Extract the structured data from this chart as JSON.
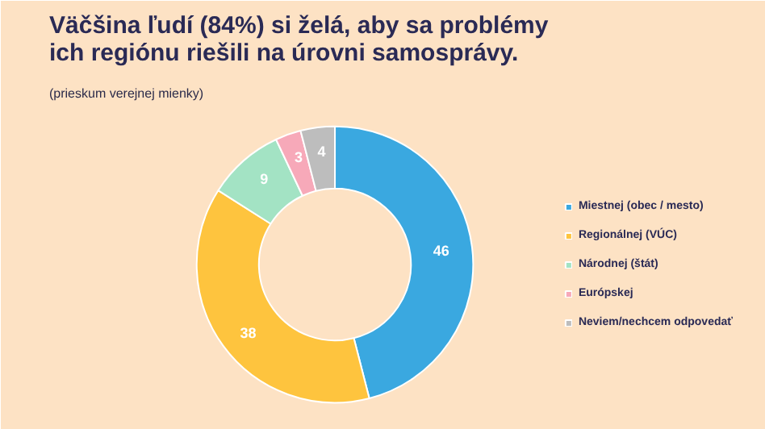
{
  "chart_data": {
    "type": "donut",
    "title": "Väčšina ľudí (84%) si želá, aby sa problémy ich regiónu riešili na úrovni samosprávy.",
    "subtitle": "(prieskum verejnej mienky)",
    "categories": [
      "Miestnej (obec / mesto)",
      "Regionálnej (VÚC)",
      "Národnej (štát)",
      "Európskej",
      "Neviem/nechcem odpovedať"
    ],
    "values": [
      46,
      38,
      9,
      3,
      4
    ],
    "colors": [
      "#3aa8e0",
      "#fec43e",
      "#a3e3c4",
      "#f7a9b9",
      "#bdbdbd"
    ],
    "data_labels": true,
    "legend": "right"
  }
}
